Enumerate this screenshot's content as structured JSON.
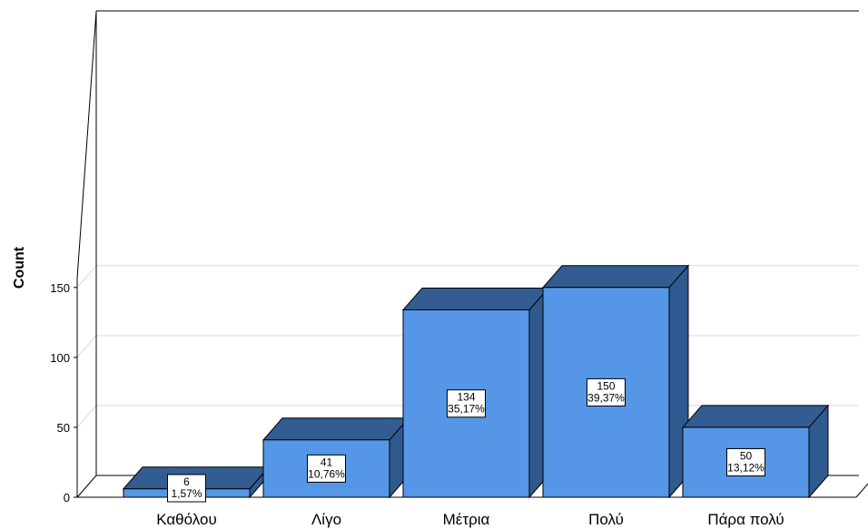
{
  "chart_data": {
    "type": "bar",
    "style": "3d",
    "categories": [
      "Καθόλου",
      "Λίγο",
      "Μέτρια",
      "Πολύ",
      "Πάρα πολύ"
    ],
    "values": [
      6,
      41,
      134,
      150,
      50
    ],
    "percent_labels": [
      "1,57%",
      "10,76%",
      "35,17%",
      "39,37%",
      "13,12%"
    ],
    "ylabel": "Count",
    "xlabel": "",
    "ylim": [
      0,
      150
    ],
    "yticks": [
      0,
      50,
      100,
      150
    ],
    "grid": true,
    "colors": {
      "bar_front": "#5596E6",
      "bar_side": "#2F5A8F",
      "bar_top": "#335D92",
      "gridline": "#D9D9D9",
      "axis": "#000000"
    }
  }
}
